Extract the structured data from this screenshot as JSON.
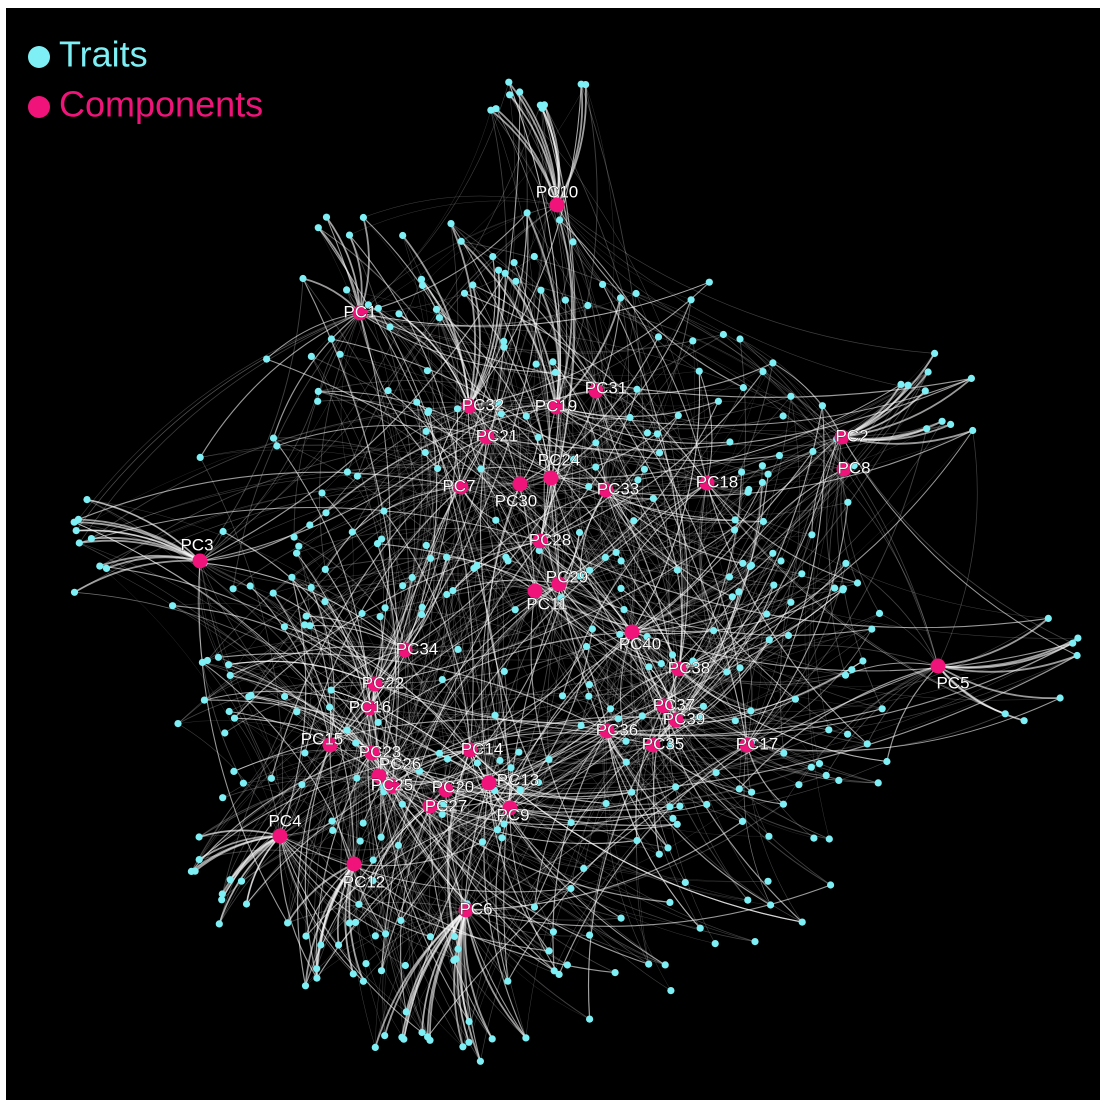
{
  "legend": {
    "items": [
      {
        "label": "Traits",
        "color": "#7ef0f5"
      },
      {
        "label": "Components",
        "color": "#f0147a"
      }
    ]
  },
  "nodes": [
    {
      "label": "PC10"
    },
    {
      "label": "PC1"
    },
    {
      "label": "PC32"
    },
    {
      "label": "PC19"
    },
    {
      "label": "PC31"
    },
    {
      "label": "PC21"
    },
    {
      "label": "PC2"
    },
    {
      "label": "PC8"
    },
    {
      "label": "PC24"
    },
    {
      "label": "PC7"
    },
    {
      "label": "PC30"
    },
    {
      "label": "PC33"
    },
    {
      "label": "PC18"
    },
    {
      "label": "PC3"
    },
    {
      "label": "PC28"
    },
    {
      "label": "PC29"
    },
    {
      "label": "PC11"
    },
    {
      "label": "PC40"
    },
    {
      "label": "PC34"
    },
    {
      "label": "PC5"
    },
    {
      "label": "PC38"
    },
    {
      "label": "PC22"
    },
    {
      "label": "PC37"
    },
    {
      "label": "PC16"
    },
    {
      "label": "PC39"
    },
    {
      "label": "PC36"
    },
    {
      "label": "PC17"
    },
    {
      "label": "PC35"
    },
    {
      "label": "PC15"
    },
    {
      "label": "PC23"
    },
    {
      "label": "PC14"
    },
    {
      "label": "PC26"
    },
    {
      "label": "PC20"
    },
    {
      "label": "PC13"
    },
    {
      "label": "PC25"
    },
    {
      "label": "PC27"
    },
    {
      "label": "PC9"
    },
    {
      "label": "PC4"
    },
    {
      "label": "PC12"
    },
    {
      "label": "PC6"
    }
  ]
}
